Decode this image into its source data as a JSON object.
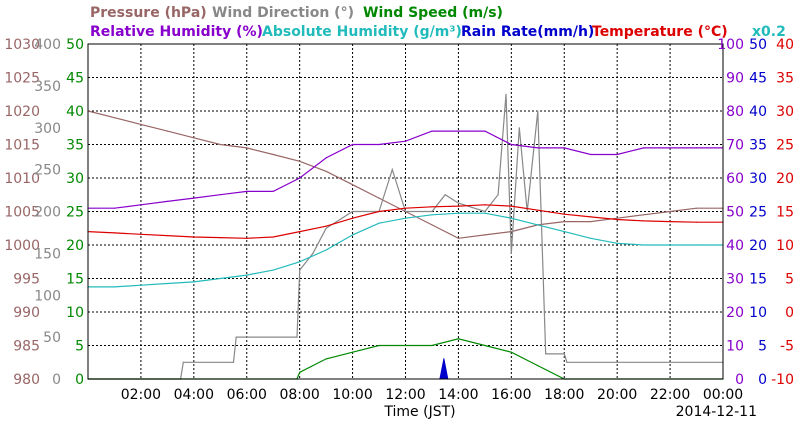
{
  "chart_data": {
    "type": "line",
    "date": "2014-12-11",
    "xlabel": "Time (JST)",
    "x_ticks": [
      "02:00",
      "04:00",
      "06:00",
      "08:00",
      "10:00",
      "12:00",
      "14:00",
      "16:00",
      "18:00",
      "20:00",
      "22:00",
      "00:00"
    ],
    "xlim": [
      0,
      24
    ],
    "grid": true,
    "multiplier_note": "x0.2",
    "series": [
      {
        "name": "Pressure (hPa)",
        "color": "#996666",
        "ylim": [
          980,
          1030
        ],
        "ticks": [
          980,
          985,
          990,
          995,
          1000,
          1005,
          1010,
          1015,
          1020,
          1025,
          1030
        ],
        "x": [
          0,
          1,
          2,
          3,
          4,
          5,
          6,
          7,
          8,
          9,
          10,
          11,
          12,
          13,
          14,
          15,
          16,
          17,
          18,
          19,
          20,
          21,
          22,
          23,
          24
        ],
        "y": [
          1020,
          1019,
          1018,
          1017,
          1016,
          1015,
          1014.5,
          1013.5,
          1012.5,
          1011,
          1009,
          1007,
          1005,
          1003,
          1001,
          1001.5,
          1002,
          1003,
          1003.5,
          1003.5,
          1004,
          1004.5,
          1005,
          1005.5,
          1005.5
        ]
      },
      {
        "name": "Wind Direction (°)",
        "color": "#888888",
        "ylim": [
          0,
          400
        ],
        "ticks": [
          0,
          50,
          100,
          150,
          200,
          250,
          300,
          350,
          400
        ],
        "x": [
          0,
          3.5,
          3.6,
          5.5,
          5.6,
          7.9,
          8,
          8.5,
          9,
          10,
          11,
          11.5,
          12,
          12.5,
          13,
          13.5,
          14,
          15,
          15.5,
          15.8,
          16,
          16.3,
          16.6,
          17,
          17.3,
          18,
          18.1,
          24
        ],
        "y": [
          0,
          0,
          20,
          20,
          50,
          50,
          130,
          150,
          180,
          200,
          200,
          250,
          200,
          200,
          200,
          220,
          210,
          200,
          220,
          340,
          150,
          300,
          200,
          320,
          30,
          30,
          20,
          20
        ]
      },
      {
        "name": "Wind Speed (m/s)",
        "color": "#008800",
        "ylim": [
          0,
          50
        ],
        "ticks": [
          0,
          5,
          10,
          15,
          20,
          25,
          30,
          35,
          40,
          45,
          50
        ],
        "x": [
          0,
          7.9,
          8,
          9,
          10,
          11,
          12,
          13,
          14,
          15,
          16,
          17,
          18,
          24
        ],
        "y": [
          0,
          0,
          1,
          3,
          4,
          5,
          5,
          5,
          6,
          5,
          4,
          2,
          0,
          0
        ]
      },
      {
        "name": "Relative Humidity (%)",
        "color": "#8800cc",
        "ylim": [
          0,
          100
        ],
        "ticks": [
          0,
          10,
          20,
          30,
          40,
          50,
          60,
          70,
          80,
          90,
          100
        ],
        "x": [
          0,
          1,
          2,
          3,
          4,
          5,
          6,
          7,
          8,
          9,
          10,
          11,
          12,
          13,
          14,
          15,
          16,
          17,
          18,
          19,
          20,
          21,
          22,
          23,
          24
        ],
        "y": [
          51,
          51,
          52,
          53,
          54,
          55,
          56,
          56,
          60,
          66,
          70,
          70,
          71,
          74,
          74,
          74,
          70,
          69,
          69,
          67,
          67,
          69,
          69,
          69,
          69
        ]
      },
      {
        "name": "Absolute Humidity (g/m³)",
        "color": "#22bbbb",
        "ylim": [
          0,
          20
        ],
        "ticks": [
          0,
          2,
          4,
          6,
          8,
          10,
          12,
          14,
          16,
          18,
          20
        ],
        "x": [
          0,
          1,
          2,
          3,
          4,
          5,
          6,
          7,
          8,
          9,
          10,
          11,
          12,
          13,
          14,
          15,
          16,
          17,
          18,
          19,
          20,
          21,
          22,
          23,
          24
        ],
        "y": [
          5.5,
          5.5,
          5.6,
          5.7,
          5.8,
          6.0,
          6.2,
          6.5,
          7.0,
          7.7,
          8.6,
          9.3,
          9.6,
          9.8,
          9.9,
          9.9,
          9.6,
          9.2,
          8.8,
          8.4,
          8.1,
          8.0,
          8.0,
          8.0,
          8.0
        ]
      },
      {
        "name": "Rain Rate(mm/h)",
        "color": "#0000cc",
        "ylim": [
          0,
          50
        ],
        "ticks": [
          0,
          5,
          10,
          15,
          20,
          25,
          30,
          35,
          40,
          45,
          50
        ],
        "x": [
          13.3,
          13.45,
          13.6
        ],
        "y": [
          0,
          3,
          0
        ]
      },
      {
        "name": "Temperature (°C)",
        "color": "#dd0000",
        "ylim": [
          -10,
          40
        ],
        "ticks": [
          -10,
          -5,
          0,
          5,
          10,
          15,
          20,
          25,
          30,
          35,
          40
        ],
        "x": [
          0,
          1,
          2,
          3,
          4,
          5,
          6,
          7,
          8,
          9,
          10,
          11,
          12,
          13,
          14,
          15,
          16,
          17,
          18,
          19,
          20,
          21,
          22,
          23,
          24
        ],
        "y": [
          12,
          11.8,
          11.6,
          11.4,
          11.2,
          11.1,
          11,
          11.2,
          12,
          12.8,
          14,
          15,
          15.5,
          15.7,
          15.8,
          16,
          15.8,
          15.2,
          14.6,
          14.2,
          13.8,
          13.6,
          13.5,
          13.4,
          13.4
        ]
      }
    ]
  }
}
